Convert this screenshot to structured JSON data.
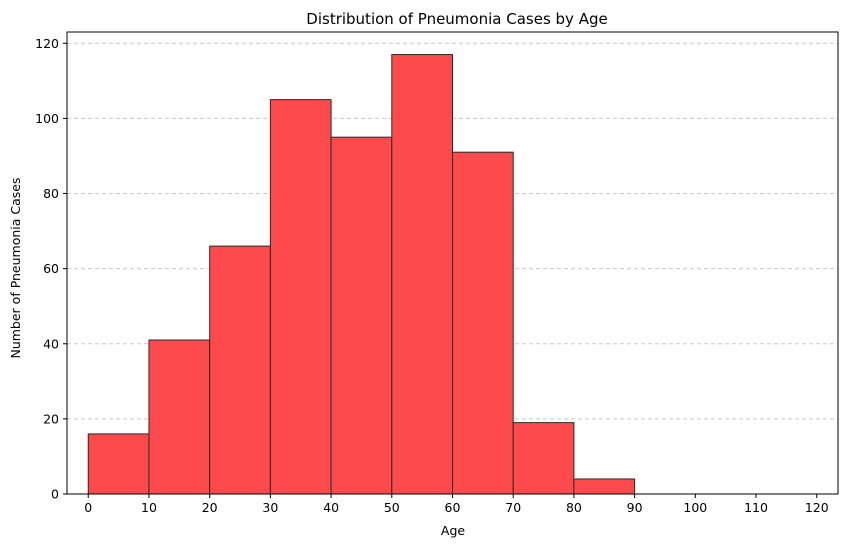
{
  "chart_data": {
    "type": "bar",
    "title": "Distribution of Pneumonia Cases by Age",
    "xlabel": "Age",
    "ylabel": "Number of Pneumonia Cases",
    "bin_edges": [
      0,
      10,
      20,
      30,
      40,
      50,
      60,
      70,
      80,
      90,
      100,
      110,
      120
    ],
    "values": [
      16,
      41,
      66,
      105,
      95,
      117,
      91,
      19,
      4,
      0,
      0,
      0
    ],
    "xlim": [
      -3.5,
      123.5
    ],
    "ylim": [
      0,
      123
    ],
    "xticks": [
      0,
      10,
      20,
      30,
      40,
      50,
      60,
      70,
      80,
      90,
      100,
      110,
      120
    ],
    "xtick_labels": [
      "0",
      "10",
      "20",
      "30",
      "40",
      "50",
      "60",
      "70",
      "80",
      "90",
      "100",
      "110",
      "120"
    ],
    "yticks": [
      0,
      20,
      40,
      60,
      80,
      100,
      120
    ],
    "ytick_labels": [
      "0",
      "20",
      "40",
      "60",
      "80",
      "100",
      "120"
    ],
    "grid": {
      "y": true,
      "x": false,
      "style": "dashed"
    },
    "bar_color": "#ff4a4d",
    "edge_color": "#2a2a2a"
  }
}
